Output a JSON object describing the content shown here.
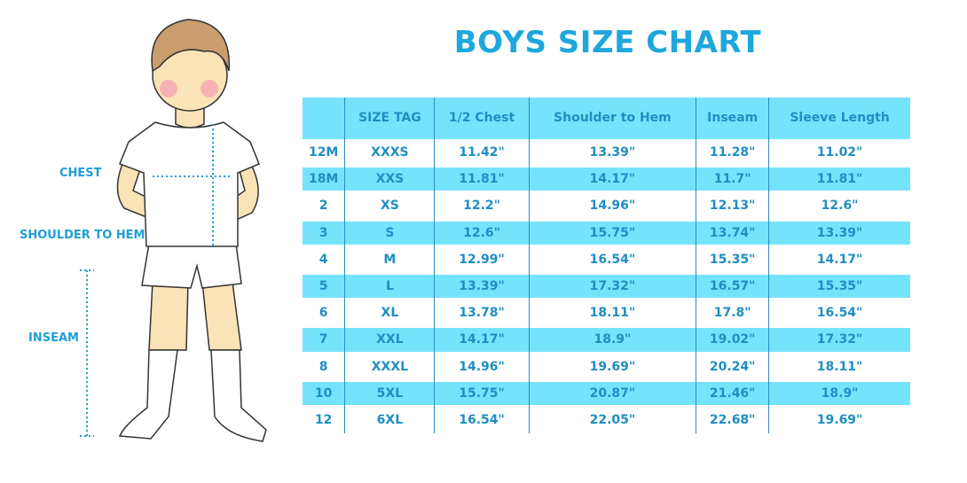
{
  "title": "BOYS SIZE CHART",
  "figure_labels": {
    "chest": "CHEST",
    "shoulder_to_hem": "SHOULDER TO HEM",
    "inseam": "INSEAM"
  },
  "colors": {
    "accent": "#1ea7dd",
    "stripe": "#76e3fc",
    "text": "#1f8ec2"
  },
  "table": {
    "headers": [
      "",
      "SIZE TAG",
      "1/2 Chest",
      "Shoulder to Hem",
      "Inseam",
      "Sleeve Length"
    ],
    "rows": [
      [
        "12M",
        "XXXS",
        "11.42\"",
        "13.39\"",
        "11.28\"",
        "11.02\""
      ],
      [
        "18M",
        "XXS",
        "11.81\"",
        "14.17\"",
        "11.7\"",
        "11.81\""
      ],
      [
        "2",
        "XS",
        "12.2\"",
        "14.96\"",
        "12.13\"",
        "12.6\""
      ],
      [
        "3",
        "S",
        "12.6\"",
        "15.75\"",
        "13.74\"",
        "13.39\""
      ],
      [
        "4",
        "M",
        "12.99\"",
        "16.54\"",
        "15.35\"",
        "14.17\""
      ],
      [
        "5",
        "L",
        "13.39\"",
        "17.32\"",
        "16.57\"",
        "15.35\""
      ],
      [
        "6",
        "XL",
        "13.78\"",
        "18.11\"",
        "17.8\"",
        "16.54\""
      ],
      [
        "7",
        "XXL",
        "14.17\"",
        "18.9\"",
        "19.02\"",
        "17.32\""
      ],
      [
        "8",
        "XXXL",
        "14.96\"",
        "19.69\"",
        "20.24\"",
        "18.11\""
      ],
      [
        "10",
        "5XL",
        "15.75\"",
        "20.87\"",
        "21.46\"",
        "18.9\""
      ],
      [
        "12",
        "6XL",
        "16.54\"",
        "22.05\"",
        "22.68\"",
        "19.69\""
      ]
    ]
  }
}
